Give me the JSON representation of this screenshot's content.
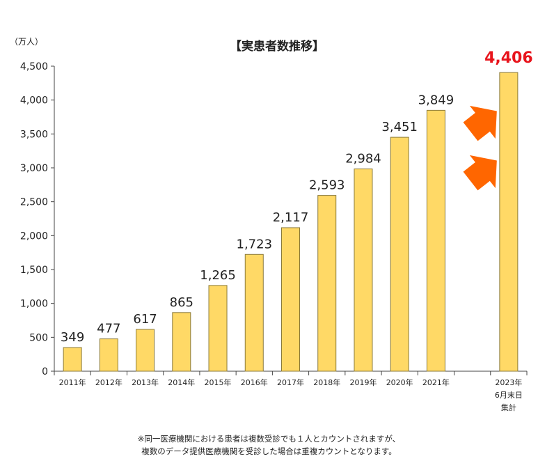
{
  "chart_data": {
    "type": "bar",
    "title": "【実患者数推移】",
    "unit_label": "（万人）",
    "categories": [
      [
        "2011年"
      ],
      [
        "2012年"
      ],
      [
        "2013年"
      ],
      [
        "2014年"
      ],
      [
        "2015年"
      ],
      [
        "2016年"
      ],
      [
        "2017年"
      ],
      [
        "2018年"
      ],
      [
        "2019年"
      ],
      [
        "2020年"
      ],
      [
        "2021年"
      ],
      [
        ""
      ],
      [
        "2023年",
        "6月末日",
        "集計"
      ]
    ],
    "values": [
      349,
      477,
      617,
      865,
      1265,
      1723,
      2117,
      2593,
      2984,
      3451,
      3849,
      null,
      4406
    ],
    "data_labels": [
      "349",
      "477",
      "617",
      "865",
      "1,265",
      "1,723",
      "2,117",
      "2,593",
      "2,984",
      "3,451",
      "3,849",
      "",
      "4,406"
    ],
    "highlight_index": 12,
    "ylim": [
      0,
      4500
    ],
    "yticks": [
      0,
      500,
      1000,
      1500,
      2000,
      2500,
      3000,
      3500,
      4000,
      4500
    ],
    "ytick_labels": [
      "0",
      "500",
      "1,000",
      "1,500",
      "2,000",
      "2,500",
      "3,000",
      "3,500",
      "4,000",
      "4,500"
    ],
    "grid": false,
    "colors": {
      "bar": "#ffd966",
      "bar_stroke": "#8a7a3a",
      "highlight_label": "#e8141c",
      "arrow": "#ff6600"
    }
  },
  "footnote": {
    "line1": "※同一医療機関における患者は複数受診でも１人とカウントされますが、",
    "line2": "複数のデータ提供医療機関を受診した場合は重複カウントとなります。"
  }
}
